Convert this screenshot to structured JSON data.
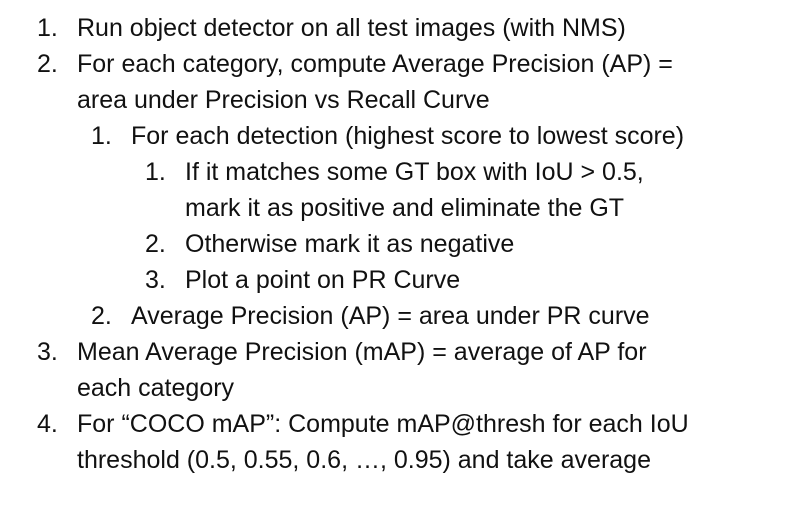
{
  "items": [
    {
      "level": 1,
      "num": "1.",
      "lines": [
        "Run object detector on all test images (with NMS)"
      ]
    },
    {
      "level": 1,
      "num": "2.",
      "lines": [
        "For each category, compute Average Precision (AP) =",
        "area under Precision vs Recall Curve"
      ]
    },
    {
      "level": 2,
      "num": "1.",
      "lines": [
        "For each detection (highest score to lowest score)"
      ]
    },
    {
      "level": 3,
      "num": "1.",
      "lines": [
        "If it matches some GT box with IoU > 0.5,",
        "mark it as positive and eliminate the GT"
      ]
    },
    {
      "level": 3,
      "num": "2.",
      "lines": [
        "Otherwise mark it as negative"
      ]
    },
    {
      "level": 3,
      "num": "3.",
      "lines": [
        "Plot a point on PR Curve"
      ]
    },
    {
      "level": 2,
      "num": "2.",
      "lines": [
        "Average Precision (AP) = area under PR curve"
      ]
    },
    {
      "level": 1,
      "num": "3.",
      "lines": [
        "Mean Average Precision (mAP) = average of AP for",
        "each category"
      ]
    },
    {
      "level": 1,
      "num": "4.",
      "lines": [
        "For “COCO mAP”: Compute mAP@thresh for each IoU",
        "threshold (0.5, 0.55, 0.6, …, 0.95) and take average"
      ]
    }
  ]
}
